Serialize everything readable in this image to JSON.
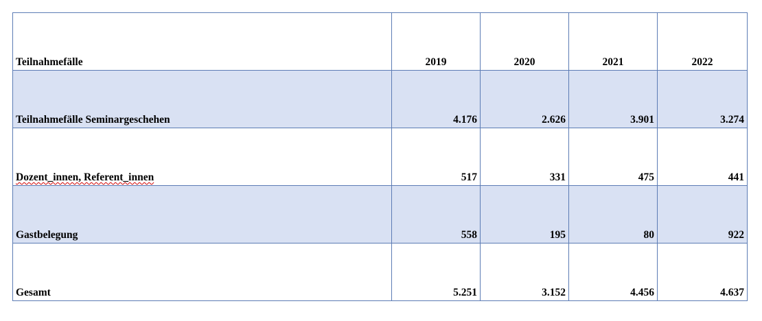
{
  "table": {
    "header": [
      "Teilnahmefälle",
      "2019",
      "2020",
      "2021",
      "2022"
    ],
    "rows": [
      [
        "Teilnahmefälle Seminargeschehen",
        "4.176",
        "2.626",
        "3.901",
        "3.274"
      ],
      [
        "Dozent_innen, Referent_innen",
        "517",
        "331",
        "475",
        "441"
      ],
      [
        "Gastbelegung",
        "558",
        "195",
        "80",
        "922"
      ],
      [
        "Gesamt",
        "5.251",
        "3.152",
        "4.456",
        "4.637"
      ]
    ]
  }
}
